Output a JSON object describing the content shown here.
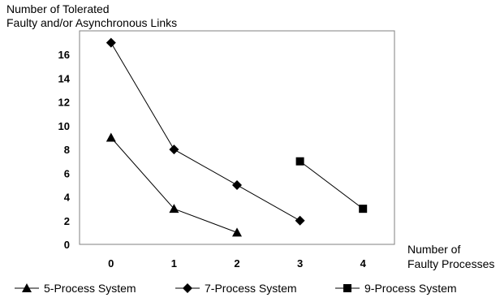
{
  "chart_data": {
    "type": "line",
    "ylabel_lines": [
      "Number of Tolerated",
      "Faulty and/or Asynchronous Links"
    ],
    "xlabel_lines": [
      "Number of",
      "Faulty Processes"
    ],
    "x_ticks": [
      0,
      1,
      2,
      3,
      4
    ],
    "y_ticks": [
      0,
      2,
      4,
      6,
      8,
      10,
      12,
      14,
      16
    ],
    "xlim": [
      -0.5,
      4.5
    ],
    "ylim": [
      0,
      18
    ],
    "grid": false,
    "legend_position": "bottom",
    "series": [
      {
        "name": "5-Process System",
        "marker": "triangle",
        "color": "#000000",
        "x": [
          0,
          1,
          2
        ],
        "y": [
          9,
          3,
          1
        ]
      },
      {
        "name": "7-Process System",
        "marker": "diamond",
        "color": "#000000",
        "x": [
          0,
          1,
          2,
          3
        ],
        "y": [
          17,
          8,
          5,
          2
        ]
      },
      {
        "name": "9-Process System",
        "marker": "square",
        "color": "#000000",
        "x": [
          3,
          4
        ],
        "y": [
          7,
          3
        ]
      }
    ]
  }
}
